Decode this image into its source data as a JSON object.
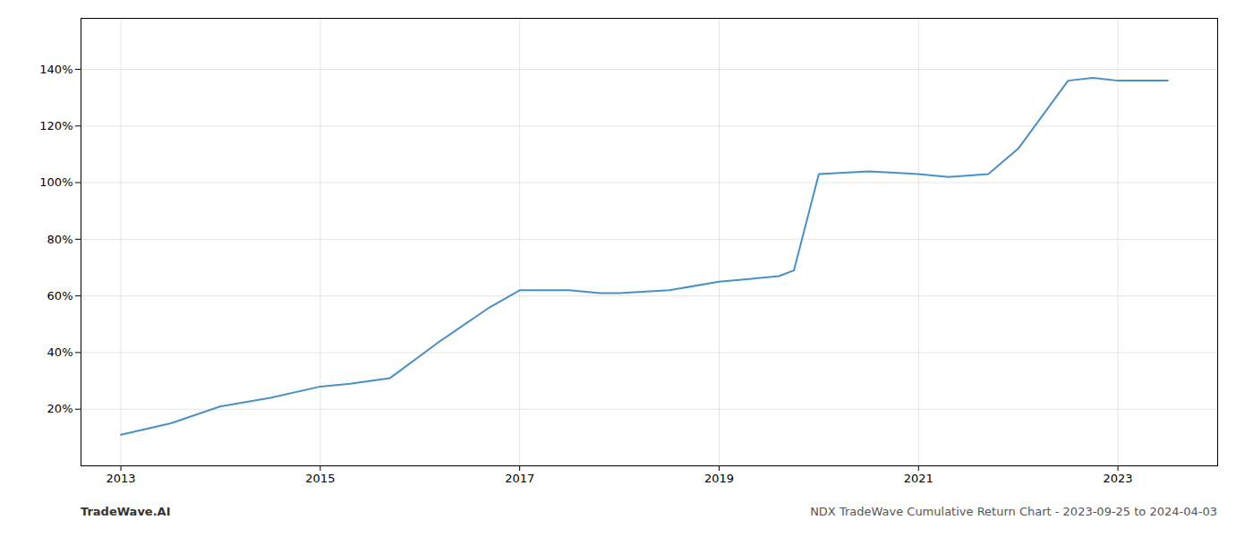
{
  "chart_data": {
    "type": "line",
    "title": "NDX TradeWave Cumulative Return Chart - 2023-09-25 to 2024-04-03",
    "annotations": [
      "TradeWave.AI"
    ],
    "x": [
      2013.0,
      2013.5,
      2014.0,
      2014.5,
      2015.0,
      2015.3,
      2015.7,
      2016.2,
      2016.7,
      2017.0,
      2017.5,
      2017.8,
      2018.0,
      2018.5,
      2019.0,
      2019.3,
      2019.6,
      2019.75,
      2020.0,
      2020.5,
      2021.0,
      2021.3,
      2021.7,
      2022.0,
      2022.5,
      2022.75,
      2023.0,
      2023.5
    ],
    "values": [
      11,
      15,
      21,
      24,
      28,
      29,
      31,
      44,
      56,
      62,
      62,
      61,
      61,
      62,
      65,
      66,
      67,
      69,
      103,
      104,
      103,
      102,
      103,
      112,
      136,
      137,
      136,
      136
    ],
    "color": "#4a90c4",
    "xlim": [
      2012.6,
      2024.0
    ],
    "ylim": [
      0,
      158
    ],
    "xticks": [
      2013,
      2015,
      2017,
      2019,
      2021,
      2023
    ],
    "yticks": [
      {
        "value": 20,
        "label": "20%"
      },
      {
        "value": 40,
        "label": "40%"
      },
      {
        "value": 60,
        "label": "60%"
      },
      {
        "value": 80,
        "label": "80%"
      },
      {
        "value": 100,
        "label": "100%"
      },
      {
        "value": 120,
        "label": "120%"
      },
      {
        "value": 140,
        "label": "140%"
      }
    ],
    "grid": true
  }
}
